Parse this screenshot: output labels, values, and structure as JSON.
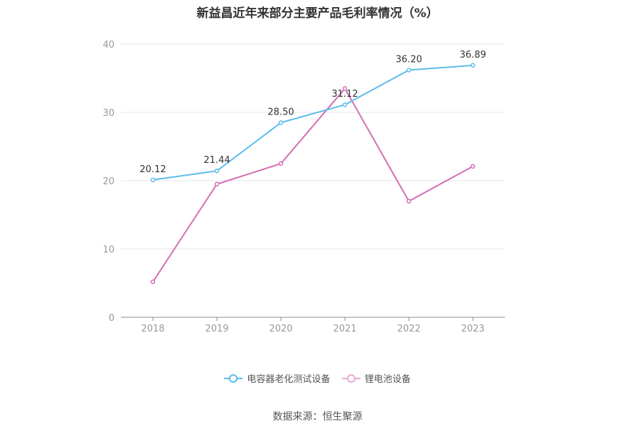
{
  "chart_data": {
    "type": "line",
    "title": "新益昌近年来部分主要产品毛利率情况（%）",
    "categories": [
      "2018",
      "2019",
      "2020",
      "2021",
      "2022",
      "2023"
    ],
    "ylim": [
      0,
      40
    ],
    "yticks": [
      0,
      10,
      20,
      30,
      40
    ],
    "grid": true,
    "legend_position": "bottom",
    "series": [
      {
        "name": "电容器老化测试设备",
        "color": "#5bbdea",
        "values": [
          20.12,
          21.44,
          28.5,
          31.12,
          36.2,
          36.89
        ],
        "labels": [
          "20.12",
          "21.44",
          "28.50",
          "31.12",
          "36.20",
          "36.89"
        ]
      },
      {
        "name": "锂电池设备",
        "color": "#d36fb0",
        "values": [
          5.2,
          19.5,
          22.5,
          33.5,
          17.0,
          22.1
        ],
        "labels": []
      }
    ]
  },
  "footer": {
    "source": "数据来源：恒生聚源"
  }
}
